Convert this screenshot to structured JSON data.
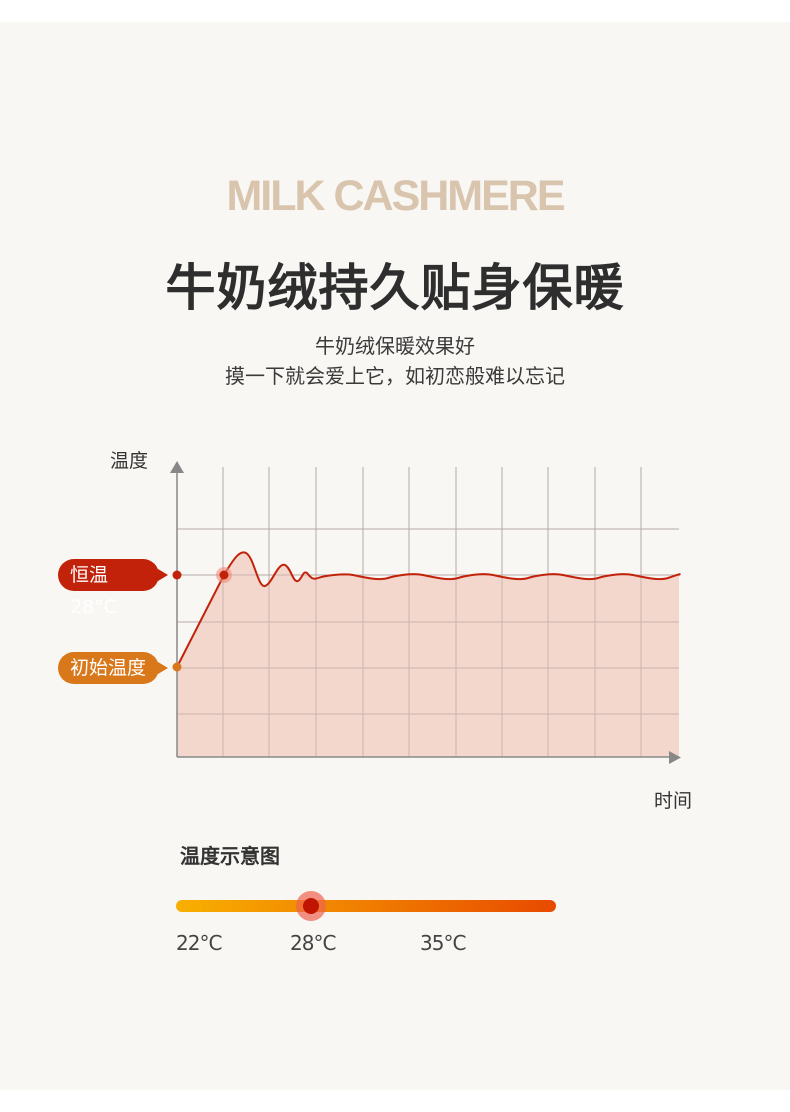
{
  "header": {
    "english_title": "MILK CASHMERE",
    "title": "牛奶绒持久贴身保暖",
    "subtitle_lines": [
      "牛奶绒保暖效果好",
      "摸一下就会爱上它，如初恋般难以忘记"
    ]
  },
  "chart_data": {
    "type": "line",
    "ylabel": "温度",
    "xlabel": "时间",
    "annotations": [
      {
        "label": "恒温28°C",
        "color": "#c3220a"
      },
      {
        "label": "初始温度",
        "color": "#d9781a"
      }
    ],
    "grid": true,
    "line_color": "#c3220a",
    "fill_color": "#f2d5ca"
  },
  "legend": {
    "title": "温度示意图",
    "ticks": [
      "22°C",
      "28°C",
      "35°C"
    ],
    "gradient": [
      "#f8b000",
      "#e84a00"
    ],
    "current": "28°C"
  }
}
